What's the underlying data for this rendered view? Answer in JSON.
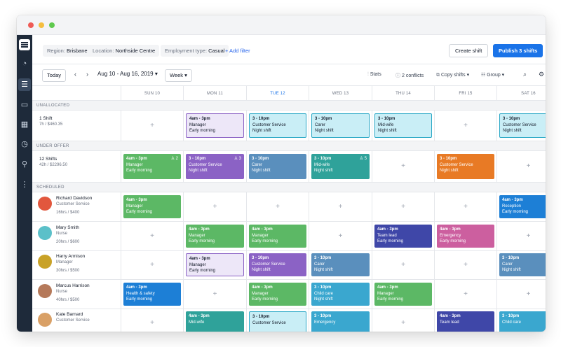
{
  "window": {
    "dots": [
      "#ef5b56",
      "#f5be3f",
      "#5fc94e"
    ]
  },
  "sidebar": {
    "items": [
      {
        "name": "clock-rotate-icon",
        "glyph": "◔"
      },
      {
        "name": "schedule-icon",
        "glyph": "☰",
        "active": true
      },
      {
        "name": "briefcase-icon",
        "glyph": "▭"
      },
      {
        "name": "calendar-icon",
        "glyph": "▦"
      },
      {
        "name": "history-icon",
        "glyph": "◷"
      },
      {
        "name": "person-icon",
        "glyph": "⚲"
      },
      {
        "name": "more-icon",
        "glyph": "⋮"
      }
    ]
  },
  "toolbar": {
    "filters": [
      {
        "label": "Region: ",
        "value": "Brisbane"
      },
      {
        "label": "Location: ",
        "value": "Northside Centre"
      },
      {
        "label": "Employment type: ",
        "value": "Casual"
      }
    ],
    "add_filter": "+ Add filter",
    "create_shift": "Create shift",
    "publish": "Publish 3 shifts"
  },
  "datebar": {
    "today": "Today",
    "range": "Aug 10 - Aug 16, 2019",
    "range_chevron": "▾",
    "view": "Week ▾",
    "stats": "Stats",
    "conflicts": "2 conflicts",
    "copy_shifts": "Copy shifts ▾",
    "group": "Group ▾"
  },
  "days": [
    {
      "label": "SUN 10",
      "today": false
    },
    {
      "label": "MON 11",
      "today": false
    },
    {
      "label": "TUE 12",
      "today": true
    },
    {
      "label": "WED 13",
      "today": false
    },
    {
      "label": "THU 14",
      "today": false
    },
    {
      "label": "FRI 15",
      "today": false
    },
    {
      "label": "SAT 16",
      "today": false
    }
  ],
  "colors": {
    "green": "#5cb865",
    "purple": "#8b62c5",
    "lavender_bg": "#ede7f8",
    "lavender_border": "#8b62c5",
    "cyan_bg": "#c9eef6",
    "cyan_border": "#2aa8c6",
    "steel": "#5a8fbd",
    "teal": "#2fa29a",
    "orange": "#e87a25",
    "navy": "#3f47a8",
    "pink": "#cc5f9f",
    "skyblue": "#3aa7cf",
    "blue": "#1d7fd6"
  },
  "sections": {
    "unallocated": "UNALLOCATED",
    "under_offer": "UNDER OFFER",
    "scheduled": "SCHEDULED"
  },
  "unallocated_row": {
    "title": "1 Shift",
    "sub": "7h / $460.35",
    "cells": [
      null,
      {
        "time": "4am - 3pm",
        "role": "Manager",
        "note": "Early morning",
        "style": "lavender"
      },
      {
        "time": "3 - 10pm",
        "role": "Customer Service",
        "note": "Night shift",
        "style": "cyan"
      },
      {
        "time": "3 - 10pm",
        "role": "Carer",
        "note": "Night shift",
        "style": "cyan"
      },
      {
        "time": "3 - 10pm",
        "role": "Mid-wife",
        "note": "Night shift",
        "style": "cyan"
      },
      null,
      {
        "time": "3 - 10pm",
        "role": "Customer Service",
        "note": "Night shift",
        "style": "cyan"
      }
    ]
  },
  "under_offer_row": {
    "title": "12 Shifts",
    "sub": "42h / $2296.50",
    "cells": [
      {
        "time": "4am - 3pm",
        "role": "Manager",
        "note": "Early morning",
        "style": "green",
        "count": "♙ 2"
      },
      {
        "time": "3 - 10pm",
        "role": "Customer Service",
        "note": "Night shift",
        "style": "purple",
        "count": "♙ 3"
      },
      {
        "time": "3 - 10pm",
        "role": "Carer",
        "note": "Night shift",
        "style": "steel"
      },
      {
        "time": "3 - 10pm",
        "role": "Mid-wife",
        "note": "Night shift",
        "style": "teal",
        "count": "♙ 5"
      },
      null,
      {
        "time": "3 - 10pm",
        "role": "Customer Service",
        "note": "Night shift",
        "style": "orange"
      },
      null
    ]
  },
  "employees": [
    {
      "name": "Richard Davidson",
      "role": "Customer Service",
      "hours": "16hrs / $400",
      "avatar_color": "#e2573d",
      "cells": [
        {
          "time": "4am - 3pm",
          "role": "Manager",
          "note": "Early morning",
          "style": "green"
        },
        null,
        null,
        null,
        null,
        null,
        {
          "time": "4am - 3pm",
          "role": "Reception",
          "note": "Early morning",
          "style": "blue"
        }
      ]
    },
    {
      "name": "Mary Smith",
      "role": "Nurse",
      "hours": "20hrs / $600",
      "avatar_color": "#5bc0c9",
      "cells": [
        null,
        {
          "time": "4am - 3pm",
          "role": "Manager",
          "note": "Early morning",
          "style": "green"
        },
        {
          "time": "4am - 3pm",
          "role": "Manager",
          "note": "Early morning",
          "style": "green"
        },
        null,
        {
          "time": "4am - 3pm",
          "role": "Team lead",
          "note": "Early morning",
          "style": "navy"
        },
        {
          "time": "4am - 3pm",
          "role": "Emergency",
          "note": "Early morning",
          "style": "pink"
        },
        null
      ]
    },
    {
      "name": "Harry Armison",
      "role": "Manager",
      "hours": "30hrs / $500",
      "avatar_color": "#c9a227",
      "cells": [
        null,
        {
          "time": "4am - 3pm",
          "role": "Manager",
          "note": "Early morning",
          "style": "lavender"
        },
        {
          "time": "3 - 10pm",
          "role": "Customer Service",
          "note": "Night shift",
          "style": "purple"
        },
        {
          "time": "3 - 10pm",
          "role": "Carer",
          "note": "Night shift",
          "style": "steel"
        },
        null,
        null,
        {
          "time": "3 - 10pm",
          "role": "Carer",
          "note": "Night shift",
          "style": "steel"
        }
      ]
    },
    {
      "name": "Marcus Harrison",
      "role": "Nurse",
      "hours": "40hrs / $500",
      "avatar_color": "#b5795a",
      "cells": [
        {
          "time": "4am - 3pm",
          "role": "Health & safety",
          "note": "Early morning",
          "style": "blue"
        },
        null,
        {
          "time": "4am - 3pm",
          "role": "Manager",
          "note": "Early morning",
          "style": "green"
        },
        {
          "time": "3 - 10pm",
          "role": "Child care",
          "note": "Night shift",
          "style": "skyblue"
        },
        {
          "time": "4am - 3pm",
          "role": "Manager",
          "note": "Early morning",
          "style": "green"
        },
        null,
        null
      ]
    },
    {
      "name": "Kate Barnard",
      "role": "Customer Service",
      "hours": "",
      "avatar_color": "#d9a066",
      "cells": [
        null,
        {
          "time": "4am - 3pm",
          "role": "Mid-wife",
          "note": "",
          "style": "teal"
        },
        {
          "time": "3 - 10pm",
          "role": "Customer Service",
          "note": "",
          "style": "cyan"
        },
        {
          "time": "3 - 10pm",
          "role": "Emergency",
          "note": "",
          "style": "skyblue"
        },
        null,
        {
          "time": "4am - 3pm",
          "role": "Team lead",
          "note": "",
          "style": "navy"
        },
        {
          "time": "3 - 10pm",
          "role": "Child care",
          "note": "",
          "style": "skyblue"
        }
      ]
    }
  ]
}
